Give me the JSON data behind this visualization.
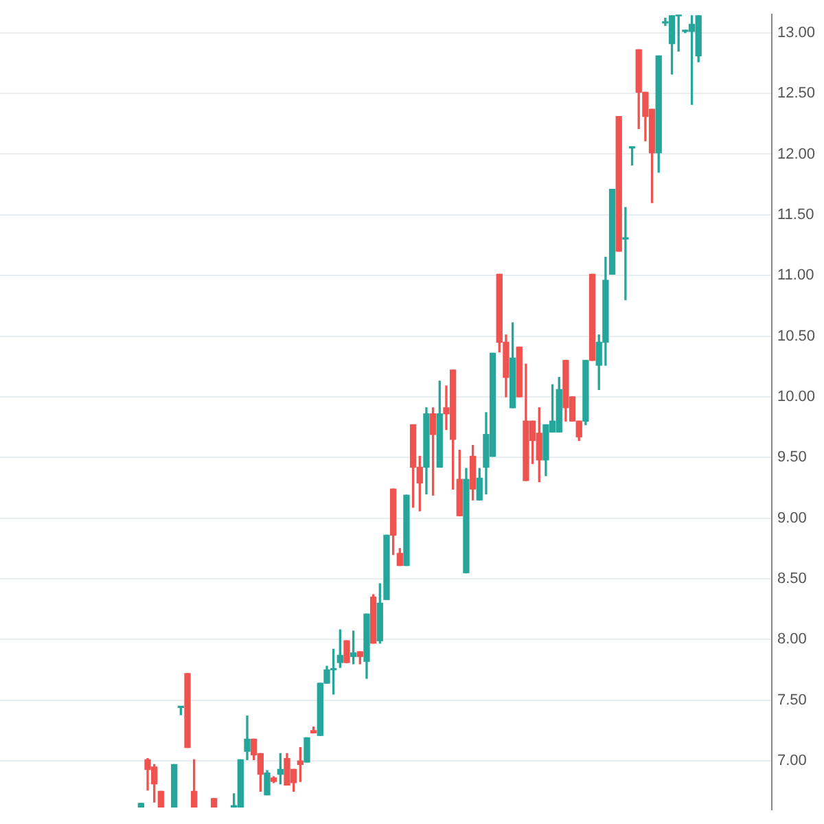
{
  "chart_data": {
    "type": "candlestick",
    "categories": [
      null,
      null,
      null,
      null,
      null,
      null,
      null,
      null,
      null,
      null,
      null,
      null,
      null,
      null,
      null,
      null,
      null,
      null,
      null,
      null,
      null,
      null,
      null,
      null,
      null,
      null,
      null,
      null,
      null,
      null,
      null,
      null,
      null,
      null,
      null,
      null,
      null,
      null,
      null,
      null,
      null,
      null,
      null,
      null,
      null,
      null,
      null,
      null,
      null,
      null,
      null,
      null,
      null,
      null,
      null,
      null,
      null,
      null,
      null,
      null,
      null,
      null,
      null,
      null,
      null,
      null,
      null,
      null,
      null,
      null,
      null,
      null,
      null,
      null,
      null,
      null,
      null,
      null,
      null,
      null,
      null,
      null,
      null,
      null,
      null
    ],
    "ohlc": [
      [
        6.62,
        6.65,
        6.62,
        6.65
      ],
      [
        7.01,
        7.02,
        6.76,
        6.93
      ],
      [
        6.95,
        6.97,
        6.66,
        6.81
      ],
      [
        6.75,
        6.75,
        6.62,
        6.62
      ],
      null,
      [
        6.62,
        6.97,
        6.62,
        6.97
      ],
      [
        7.44,
        7.45,
        7.38,
        7.44
      ],
      [
        7.72,
        7.72,
        7.11,
        7.11
      ],
      [
        6.75,
        7.01,
        6.62,
        6.62
      ],
      null,
      null,
      [
        6.69,
        6.69,
        6.62,
        6.62
      ],
      null,
      null,
      [
        6.62,
        6.73,
        6.62,
        6.62
      ],
      [
        6.62,
        7.01,
        6.62,
        7.01
      ],
      [
        7.08,
        7.37,
        7.01,
        7.18
      ],
      [
        7.18,
        7.18,
        7.01,
        7.05
      ],
      [
        7.06,
        7.06,
        6.75,
        6.89
      ],
      [
        6.72,
        6.92,
        6.72,
        6.9
      ],
      [
        6.86,
        6.87,
        6.82,
        6.83
      ],
      [
        6.89,
        7.06,
        6.81,
        6.93
      ],
      [
        7.02,
        7.06,
        6.8,
        6.8
      ],
      [
        6.93,
        6.93,
        6.75,
        6.82
      ],
      [
        7,
        7.11,
        6.83,
        6.97
      ],
      [
        6.99,
        7.19,
        6.99,
        7.19
      ],
      [
        7.25,
        7.28,
        7.23,
        7.23
      ],
      [
        7.21,
        7.64,
        7.21,
        7.64
      ],
      [
        7.64,
        7.78,
        7.64,
        7.75
      ],
      [
        7.75,
        7.92,
        7.55,
        7.76
      ],
      [
        7.81,
        8.08,
        7.77,
        7.87
      ],
      [
        7.99,
        7.99,
        7.81,
        7.81
      ],
      [
        7.86,
        8.07,
        7.8,
        7.89
      ],
      [
        7.9,
        7.9,
        7.8,
        7.86
      ],
      [
        7.82,
        8.21,
        7.68,
        8.21
      ],
      [
        8.35,
        8.37,
        7.97,
        7.97
      ],
      [
        7.99,
        8.46,
        7.97,
        8.3
      ],
      [
        8.33,
        8.86,
        8.33,
        8.86
      ],
      [
        9.24,
        9.24,
        8.7,
        8.86
      ],
      [
        8.71,
        8.75,
        8.61,
        8.61
      ],
      [
        8.61,
        9.19,
        8.61,
        9.19
      ],
      [
        9.77,
        9.77,
        9.09,
        9.42
      ],
      [
        9.42,
        9.51,
        9.06,
        9.29
      ],
      [
        9.42,
        9.91,
        9.2,
        9.86
      ],
      [
        9.86,
        9.91,
        9.19,
        9.69
      ],
      [
        9.42,
        10.13,
        9.42,
        9.86
      ],
      [
        9.91,
        10.09,
        9.73,
        9.86
      ],
      [
        10.22,
        10.22,
        9.24,
        9.65
      ],
      [
        9.32,
        9.56,
        9.02,
        9.02
      ],
      [
        8.55,
        9.41,
        8.55,
        9.32
      ],
      [
        9.51,
        9.6,
        9.15,
        9.24
      ],
      [
        9.15,
        9.41,
        9.15,
        9.33
      ],
      [
        9.42,
        9.87,
        9.2,
        9.69
      ],
      [
        9.51,
        10.36,
        9.51,
        10.36
      ],
      [
        11.01,
        11.01,
        10.37,
        10.45
      ],
      [
        10.45,
        10.51,
        10,
        10.16
      ],
      [
        9.91,
        10.61,
        9.91,
        10.32
      ],
      [
        10.41,
        10.41,
        10,
        10
      ],
      [
        9.8,
        10.27,
        9.31,
        9.31
      ],
      [
        9.8,
        9.8,
        9.45,
        9.64
      ],
      [
        9.7,
        9.91,
        9.3,
        9.48
      ],
      [
        9.48,
        9.77,
        9.35,
        9.77
      ],
      [
        9.71,
        10.1,
        9.71,
        9.8
      ],
      [
        9.71,
        10.16,
        9.71,
        10.06
      ],
      [
        10.3,
        10.3,
        9.8,
        9.91
      ],
      [
        10,
        10,
        9.8,
        9.8
      ],
      [
        9.8,
        9.8,
        9.64,
        9.67
      ],
      [
        9.8,
        10.3,
        9.77,
        10.3
      ],
      [
        11.01,
        11.01,
        10.3,
        10.3
      ],
      [
        10.26,
        10.51,
        10.06,
        10.45
      ],
      [
        10.45,
        11.15,
        10.26,
        10.96
      ],
      [
        11.01,
        11.71,
        11.01,
        11.71
      ],
      [
        12.31,
        12.31,
        11.2,
        11.2
      ],
      [
        11.3,
        11.56,
        10.8,
        11.31
      ],
      [
        12.05,
        12.06,
        11.91,
        12.06
      ],
      [
        12.86,
        12.86,
        12.21,
        12.51
      ],
      [
        12.51,
        12.51,
        12.11,
        12.31
      ],
      [
        12.37,
        12.37,
        11.6,
        12.01
      ],
      [
        12.01,
        12.81,
        11.85,
        12.81
      ],
      [
        13.08,
        13.12,
        13.06,
        13.09
      ],
      [
        12.91,
        13.14,
        12.66,
        13.14
      ],
      [
        13.14,
        13.14,
        12.85,
        13.14
      ],
      [
        13.01,
        13.02,
        13,
        13.01
      ],
      [
        13.01,
        13.14,
        12.41,
        13.07
      ],
      [
        12.81,
        13.14,
        12.76,
        13.14
      ]
    ],
    "colors": [
      "#26a69a",
      "#ef5350",
      "#ef5350",
      "#ef5350",
      null,
      "#26a69a",
      "#26a69a",
      "#ef5350",
      "#ef5350",
      null,
      null,
      "#ef5350",
      null,
      null,
      "#26a69a",
      "#26a69a",
      "#26a69a",
      "#ef5350",
      "#ef5350",
      "#26a69a",
      "#ef5350",
      "#26a69a",
      "#ef5350",
      "#ef5350",
      "#ef5350",
      "#26a69a",
      "#ef5350",
      "#26a69a",
      "#26a69a",
      "#26a69a",
      "#26a69a",
      "#ef5350",
      "#26a69a",
      "#ef5350",
      "#26a69a",
      "#ef5350",
      "#26a69a",
      "#26a69a",
      "#ef5350",
      "#ef5350",
      "#26a69a",
      "#ef5350",
      "#ef5350",
      "#26a69a",
      "#ef5350",
      "#26a69a",
      "#ef5350",
      "#ef5350",
      "#ef5350",
      "#26a69a",
      "#ef5350",
      "#26a69a",
      "#26a69a",
      "#26a69a",
      "#ef5350",
      "#ef5350",
      "#26a69a",
      "#ef5350",
      "#ef5350",
      "#ef5350",
      "#ef5350",
      "#26a69a",
      "#26a69a",
      "#26a69a",
      "#ef5350",
      "#ef5350",
      "#ef5350",
      "#26a69a",
      "#ef5350",
      "#26a69a",
      "#26a69a",
      "#26a69a",
      "#ef5350",
      "#26a69a",
      "#26a69a",
      "#ef5350",
      "#ef5350",
      "#ef5350",
      "#26a69a",
      "#26a69a",
      "#26a69a",
      "#26a69a",
      "#26a69a",
      "#26a69a",
      "#26a69a"
    ],
    "ylim": [
      6.6,
      13.15
    ],
    "yticks": [
      {
        "value": 7,
        "label": "7.00"
      },
      {
        "value": 7.5,
        "label": "7.50"
      },
      {
        "value": 8,
        "label": "8.00"
      },
      {
        "value": 8.5,
        "label": "8.50"
      },
      {
        "value": 9,
        "label": "9.00"
      },
      {
        "value": 9.5,
        "label": "9.50"
      },
      {
        "value": 10,
        "label": "10.00"
      },
      {
        "value": 10.5,
        "label": "10.50"
      },
      {
        "value": 11,
        "label": "11.00"
      },
      {
        "value": 11.5,
        "label": "11.50"
      },
      {
        "value": 12,
        "label": "12.00"
      },
      {
        "value": 12.5,
        "label": "12.50"
      },
      {
        "value": 13,
        "label": "13.00"
      }
    ],
    "grid": "y",
    "tick_labels": "y"
  }
}
